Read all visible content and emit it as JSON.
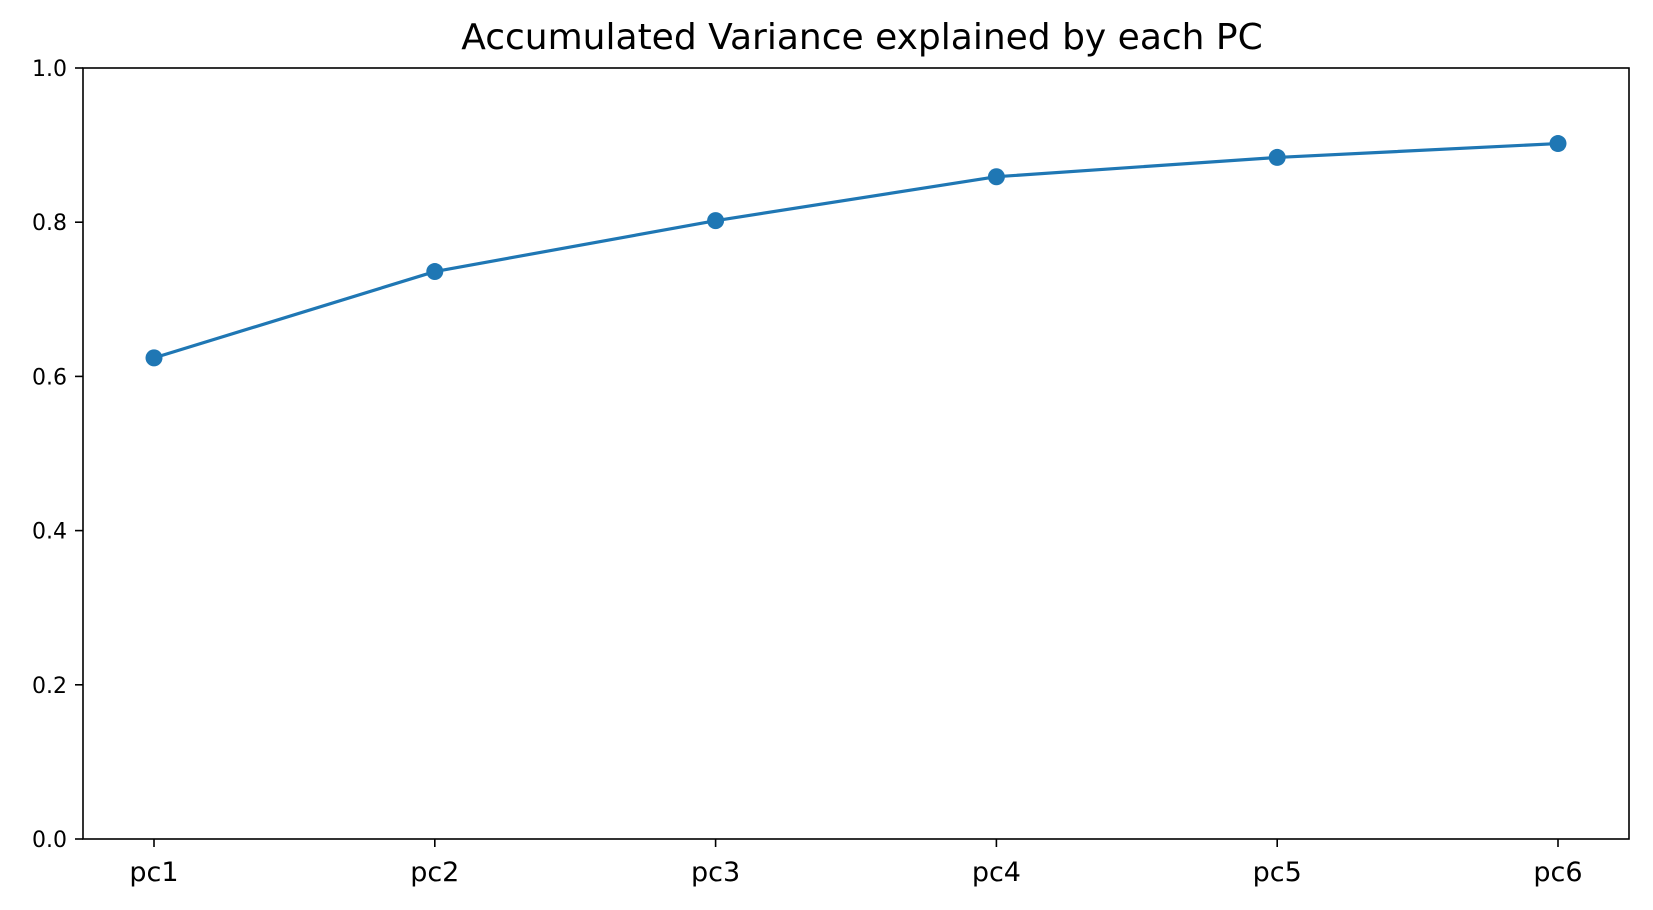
{
  "chart_data": {
    "type": "line",
    "title": "Accumulated Variance explained by each PC",
    "xlabel": "",
    "ylabel": "",
    "categories": [
      "pc1",
      "pc2",
      "pc3",
      "pc4",
      "pc5",
      "pc6"
    ],
    "series": [
      {
        "values": [
          0.624,
          0.736,
          0.802,
          0.859,
          0.884,
          0.902
        ],
        "color": "#1f77b4",
        "marker": "circle"
      }
    ],
    "ylim": [
      0.0,
      1.0
    ],
    "yticks": [
      "0.0",
      "0.2",
      "0.4",
      "0.6",
      "0.8",
      "1.0"
    ],
    "grid": false,
    "legend": "none"
  }
}
